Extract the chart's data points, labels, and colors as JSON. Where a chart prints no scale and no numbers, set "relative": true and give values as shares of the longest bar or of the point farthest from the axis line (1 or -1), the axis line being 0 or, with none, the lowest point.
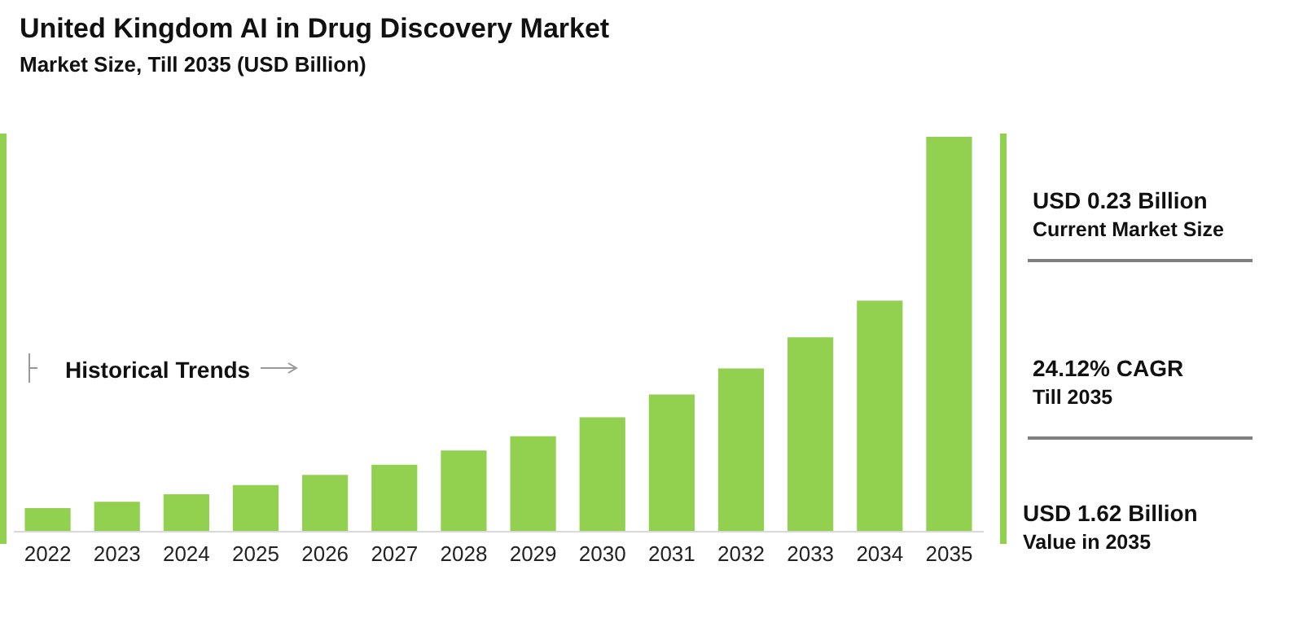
{
  "chart_data": {
    "type": "bar",
    "title": "United Kingdom AI in Drug Discovery Market",
    "subtitle": "Market Size, Till 2035 (USD Billion)",
    "categories": [
      "2022",
      "2023",
      "2024",
      "2025",
      "2026",
      "2027",
      "2028",
      "2029",
      "2030",
      "2031",
      "2032",
      "2033",
      "2034",
      "2035"
    ],
    "values": [
      0.058,
      0.074,
      0.093,
      0.116,
      0.142,
      0.168,
      0.204,
      0.24,
      0.288,
      0.346,
      0.412,
      0.491,
      0.584,
      1
    ],
    "relative": true,
    "color": "#92d050",
    "annotations": [
      "Historical Trends",
      "USD 0.23 Billion",
      "Current Market Size",
      "24.12% CAGR",
      "Till 2035",
      "USD 1.62 Billion",
      "Value in 2035"
    ]
  }
}
